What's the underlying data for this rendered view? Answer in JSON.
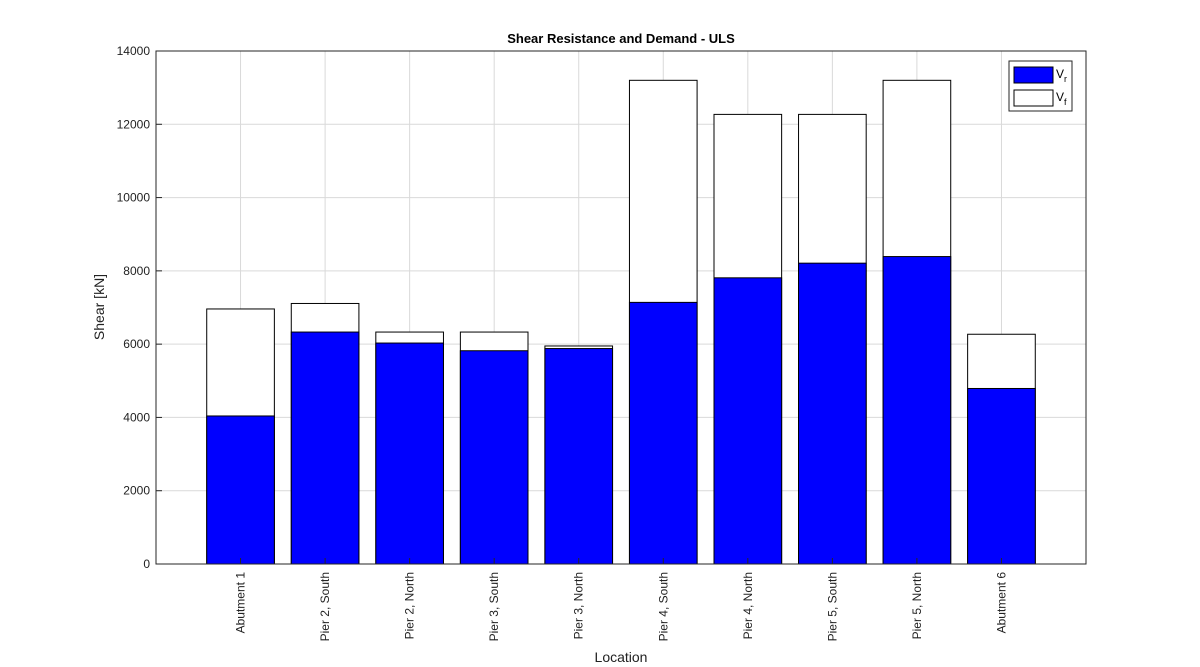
{
  "chart_data": {
    "type": "bar",
    "title": "Shear Resistance and Demand - ULS",
    "xlabel": "Location",
    "ylabel": "Shear [kN]",
    "ylim": [
      0,
      14000
    ],
    "yticks": [
      0,
      2000,
      4000,
      6000,
      8000,
      10000,
      12000,
      14000
    ],
    "grid": true,
    "legend_position": "top-right",
    "categories": [
      "Abutment 1",
      "Pier 2, South",
      "Pier 2, North",
      "Pier 3, South",
      "Pier 3, North",
      "Pier 4, South",
      "Pier 4, North",
      "Pier 5, South",
      "Pier 5, North",
      "Abutment 6"
    ],
    "series": [
      {
        "name": "Vf",
        "legend_main": "V",
        "legend_sub": "f",
        "color": "#ffffff",
        "values": [
          6960,
          7110,
          6330,
          6330,
          5950,
          13200,
          12270,
          12270,
          13200,
          6270
        ]
      },
      {
        "name": "Vr",
        "legend_main": "V",
        "legend_sub": "r",
        "color": "#0000ff",
        "values": [
          4040,
          6330,
          6030,
          5820,
          5880,
          7140,
          7810,
          8210,
          8390,
          4790
        ]
      }
    ]
  }
}
